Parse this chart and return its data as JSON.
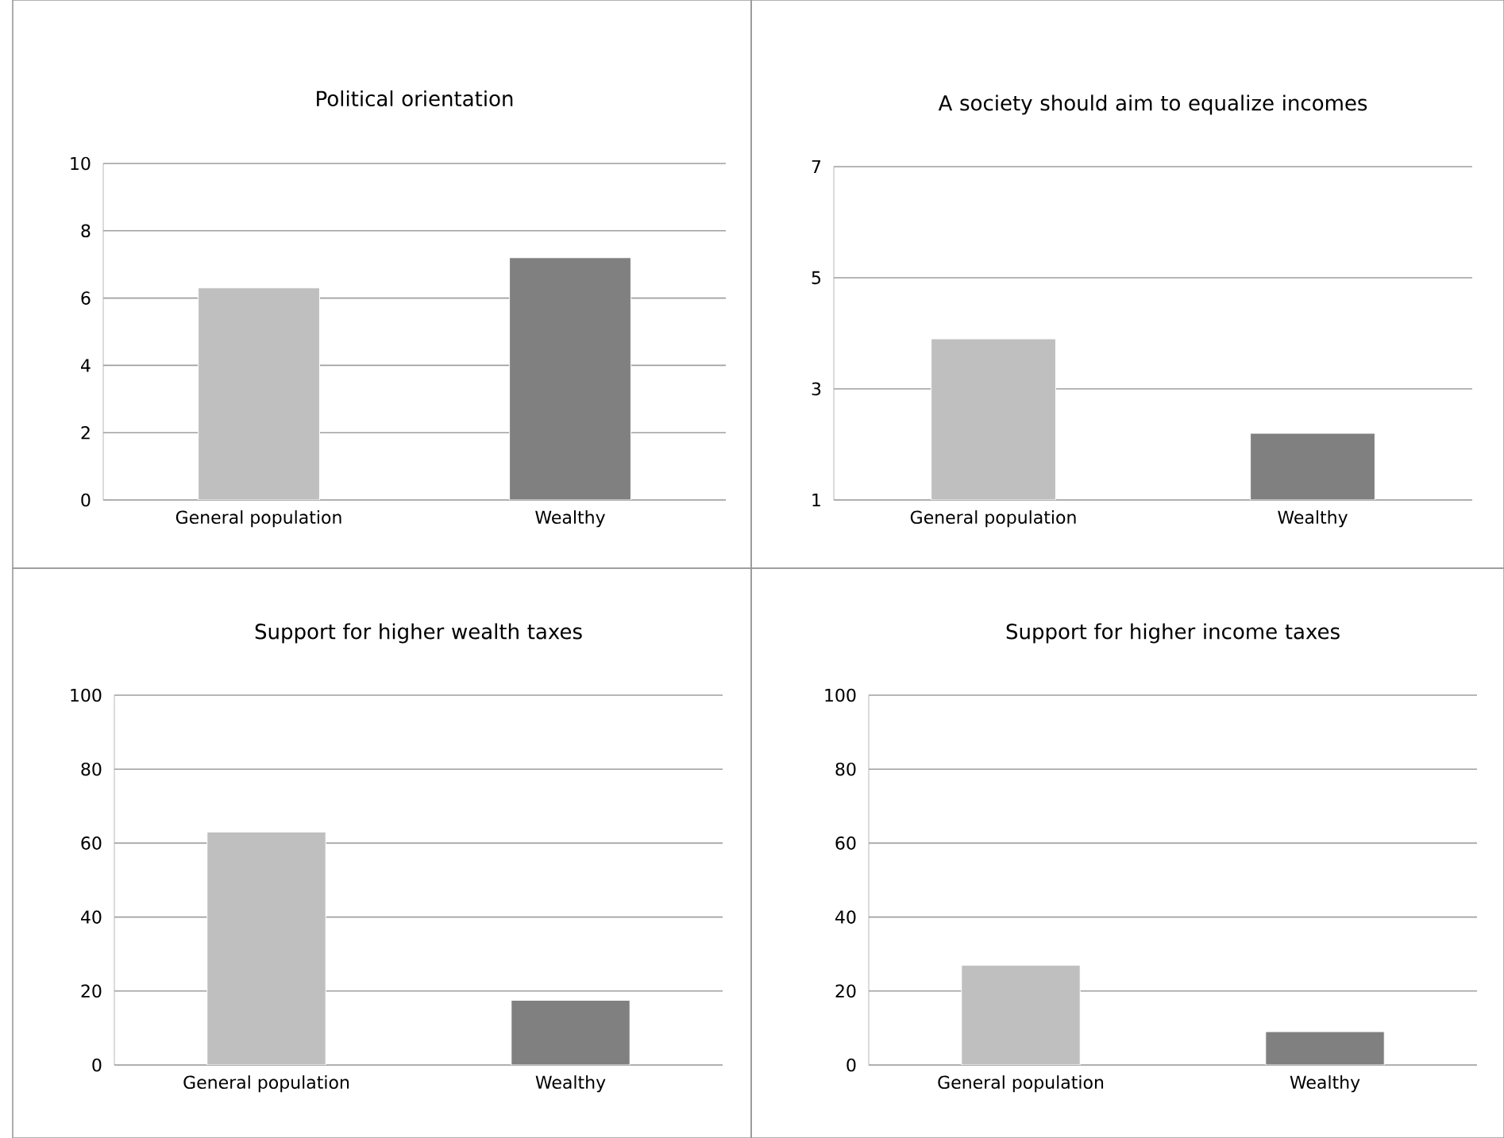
{
  "chart_data": [
    {
      "type": "bar",
      "title": "Political orientation",
      "categories": [
        "General population",
        "Wealthy"
      ],
      "values": [
        6.3,
        7.2
      ],
      "colors": [
        "#bfbfbf",
        "#808080"
      ],
      "ylim": [
        0,
        10
      ],
      "yticks": [
        0,
        2,
        4,
        6,
        8,
        10
      ],
      "grid": "y"
    },
    {
      "type": "bar",
      "title": "A society should aim to equalize incomes",
      "categories": [
        "General population",
        "Wealthy"
      ],
      "values": [
        3.9,
        2.2
      ],
      "colors": [
        "#bfbfbf",
        "#808080"
      ],
      "ylim": [
        1,
        7
      ],
      "yticks": [
        1,
        3,
        5,
        7
      ],
      "grid": "y"
    },
    {
      "type": "bar",
      "title": "Support for higher wealth taxes",
      "categories": [
        "General population",
        "Wealthy"
      ],
      "values": [
        63,
        17.5
      ],
      "colors": [
        "#bfbfbf",
        "#808080"
      ],
      "ylim": [
        0,
        100
      ],
      "yticks": [
        0,
        20,
        40,
        60,
        80,
        100
      ],
      "grid": "y"
    },
    {
      "type": "bar",
      "title": "Support for higher income taxes",
      "categories": [
        "General population",
        "Wealthy"
      ],
      "values": [
        27,
        9
      ],
      "colors": [
        "#bfbfbf",
        "#808080"
      ],
      "ylim": [
        0,
        100
      ],
      "yticks": [
        0,
        20,
        40,
        60,
        80,
        100
      ],
      "grid": "y"
    }
  ]
}
